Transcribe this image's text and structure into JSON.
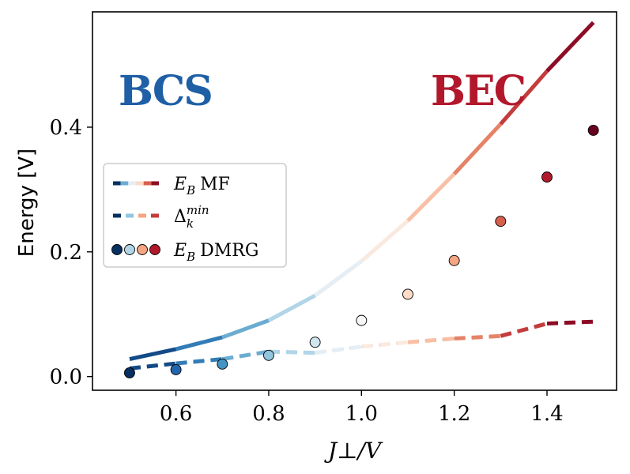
{
  "chart_data": {
    "type": "line",
    "xlabel": "J⊥/V",
    "ylabel": "Energy [V]",
    "xlim": [
      0.42,
      1.55
    ],
    "ylim": [
      -0.022,
      0.585
    ],
    "xticks": [
      0.6,
      0.8,
      1.0,
      1.2,
      1.4
    ],
    "xtick_labels": [
      "0.6",
      "0.8",
      "1.0",
      "1.2",
      "1.4"
    ],
    "yticks": [
      0.0,
      0.2,
      0.4
    ],
    "ytick_labels": [
      "0.0",
      "0.2",
      "0.4"
    ],
    "annotations": [
      {
        "text": "BCS",
        "x": 0.6,
        "y": 0.47,
        "color": "#1f5fa5"
      },
      {
        "text": "BEC",
        "x": 1.33,
        "y": 0.47,
        "color": "#b2182b"
      }
    ],
    "colormap": "RdBu_r",
    "series": [
      {
        "name": "E_B MF",
        "style": "solid",
        "x": [
          0.5,
          0.6,
          0.7,
          0.8,
          0.9,
          1.0,
          1.1,
          1.2,
          1.3,
          1.4,
          1.5
        ],
        "y": [
          0.028,
          0.044,
          0.063,
          0.09,
          0.13,
          0.185,
          0.25,
          0.325,
          0.405,
          0.49,
          0.568
        ]
      },
      {
        "name": "Δ_k^min",
        "style": "dashed",
        "x": [
          0.5,
          0.6,
          0.7,
          0.8,
          0.9,
          1.0,
          1.1,
          1.2,
          1.3,
          1.4,
          1.5
        ],
        "y": [
          0.013,
          0.021,
          0.028,
          0.04,
          0.038,
          0.048,
          0.055,
          0.061,
          0.065,
          0.085,
          0.088
        ]
      },
      {
        "name": "E_B DMRG",
        "style": "markers",
        "x": [
          0.5,
          0.6,
          0.7,
          0.8,
          0.9,
          1.0,
          1.1,
          1.2,
          1.3,
          1.4,
          1.5
        ],
        "y": [
          0.006,
          0.011,
          0.02,
          0.034,
          0.055,
          0.09,
          0.132,
          0.186,
          0.249,
          0.32,
          0.395
        ]
      }
    ],
    "legend": {
      "location": "center-left",
      "entries": [
        {
          "label": "MF",
          "symbol": "E",
          "subscript": "B",
          "style": "solid"
        },
        {
          "label": "",
          "symbol": "Δ",
          "subscript": "k",
          "superscript": "min",
          "style": "dashed"
        },
        {
          "label": "DMRG",
          "symbol": "E",
          "subscript": "B",
          "style": "markers"
        }
      ]
    }
  }
}
